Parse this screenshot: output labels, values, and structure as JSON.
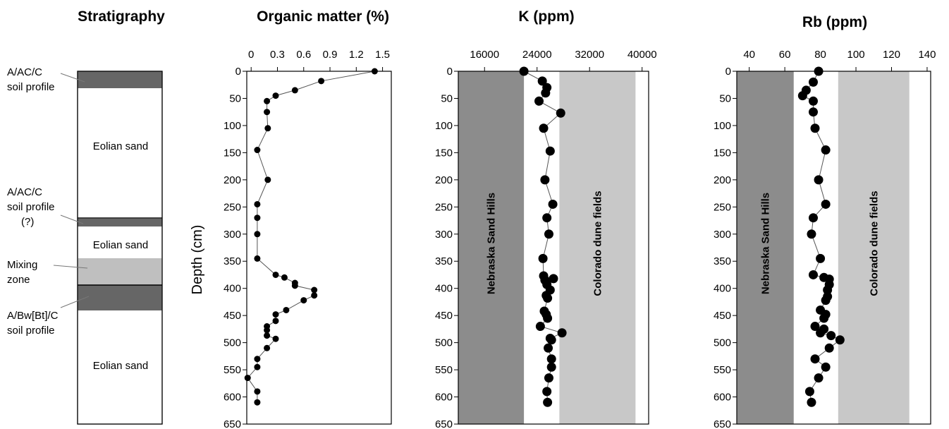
{
  "stratigraphy": {
    "title": "Stratigraphy",
    "labels": [
      {
        "lines": [
          "A/AC/C",
          "soil profile"
        ]
      },
      {
        "lines": [
          "A/AC/C",
          "soil profile",
          "(?)"
        ]
      },
      {
        "lines": [
          "Mixing",
          "zone"
        ]
      },
      {
        "lines": [
          "A/Bw[Bt]/C",
          "soil profile"
        ]
      }
    ],
    "units": [
      "Eolian sand",
      "Eolian sand",
      "Eolian sand"
    ],
    "colors": {
      "soil": "#666666",
      "mixing": "#bfbfbf",
      "sand": "#ffffff"
    }
  },
  "depth_label": "Depth (cm)",
  "depth_ticks": [
    "0",
    "50",
    "100",
    "150",
    "200",
    "250",
    "300",
    "350",
    "400",
    "450",
    "500",
    "550",
    "600",
    "650"
  ],
  "chart_data": [
    {
      "type": "line",
      "title": "Organic matter (%)",
      "ylabel": "Depth (cm)",
      "xlim": [
        -0.05,
        1.6
      ],
      "ylim": [
        650,
        0
      ],
      "xticks": [
        "0",
        "0.3",
        "0.6",
        "0.9",
        "1.2",
        "1.5"
      ],
      "xtick_values": [
        0,
        0.3,
        0.6,
        0.9,
        1.2,
        1.5
      ],
      "x": [
        1.41,
        0.8,
        0.5,
        0.28,
        0.18,
        0.18,
        0.19,
        0.07,
        0.19,
        0.07,
        0.07,
        0.07,
        0.07,
        0.28,
        0.38,
        0.5,
        0.5,
        0.72,
        0.72,
        0.6,
        0.4,
        0.28,
        0.28,
        0.18,
        0.18,
        0.18,
        0.28,
        0.18,
        0.07,
        0.07,
        -0.04,
        0.07,
        0.07
      ],
      "y": [
        0,
        18,
        35,
        45,
        55,
        75,
        105,
        145,
        200,
        245,
        270,
        300,
        345,
        375,
        380,
        390,
        395,
        403,
        413,
        422,
        440,
        448,
        460,
        470,
        477,
        487,
        493,
        510,
        530,
        545,
        565,
        590,
        610
      ],
      "marker_size": "small"
    },
    {
      "type": "line",
      "title": "K (ppm)",
      "xlim": [
        12000,
        41000
      ],
      "ylim": [
        650,
        0
      ],
      "xticks": [
        "16000",
        "24000",
        "32000",
        "40000"
      ],
      "xtick_values": [
        16000,
        24000,
        32000,
        40000
      ],
      "bands": [
        {
          "label": "Nebraska Sand Hills",
          "range": [
            12000,
            22000
          ],
          "color": "#8c8c8c"
        },
        {
          "label": "Colorado dune fields",
          "range": [
            27400,
            39000
          ],
          "color": "#c8c8c8"
        }
      ],
      "x": [
        22000,
        24800,
        25500,
        25300,
        24300,
        27600,
        25000,
        26000,
        25200,
        26400,
        25500,
        25800,
        24900,
        25000,
        26500,
        25200,
        25500,
        26000,
        25400,
        25600,
        25100,
        25400,
        25600,
        24500,
        27800,
        26000,
        26200,
        25700,
        26200,
        26200,
        25800,
        25500,
        25600
      ],
      "y": [
        0,
        18,
        30,
        40,
        55,
        77,
        105,
        147,
        200,
        245,
        270,
        300,
        345,
        377,
        382,
        385,
        393,
        403,
        413,
        418,
        442,
        448,
        455,
        470,
        482,
        492,
        495,
        510,
        530,
        545,
        565,
        590,
        610
      ],
      "marker_size": "large"
    },
    {
      "type": "line",
      "title": "Rb (ppm)",
      "xlim": [
        33,
        142
      ],
      "ylim": [
        650,
        0
      ],
      "xticks": [
        "40",
        "60",
        "80",
        "100",
        "120",
        "140"
      ],
      "xtick_values": [
        40,
        60,
        80,
        100,
        120,
        140
      ],
      "bands": [
        {
          "label": "Nebraska Sand Hills",
          "range": [
            33,
            65
          ],
          "color": "#8c8c8c"
        },
        {
          "label": "Colorado dune fields",
          "range": [
            90,
            130
          ],
          "color": "#c8c8c8"
        }
      ],
      "x": [
        79,
        76,
        72,
        70,
        76,
        76,
        77,
        83,
        79,
        83,
        76,
        75,
        80,
        76,
        82,
        85,
        85,
        84,
        84,
        83,
        80,
        83,
        82,
        77,
        82,
        80,
        86,
        91,
        85,
        77,
        83,
        79,
        74,
        75
      ],
      "y": [
        0,
        20,
        35,
        45,
        55,
        75,
        105,
        145,
        200,
        245,
        270,
        300,
        345,
        375,
        380,
        383,
        393,
        403,
        415,
        422,
        440,
        448,
        455,
        470,
        475,
        482,
        487,
        495,
        510,
        530,
        545,
        565,
        590,
        610
      ],
      "marker_size": "large"
    }
  ]
}
